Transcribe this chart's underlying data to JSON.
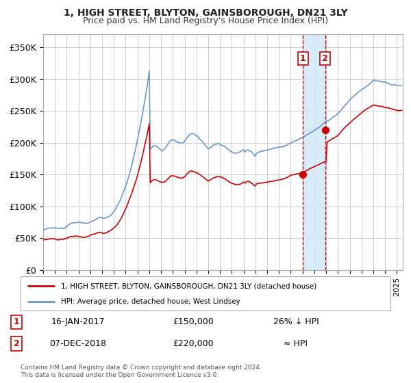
{
  "title": "1, HIGH STREET, BLYTON, GAINSBOROUGH, DN21 3LY",
  "subtitle": "Price paid vs. HM Land Registry's House Price Index (HPI)",
  "ylim": [
    0,
    370000
  ],
  "yticks": [
    0,
    50000,
    100000,
    150000,
    200000,
    250000,
    300000,
    350000
  ],
  "ytick_labels": [
    "£0",
    "£50K",
    "£100K",
    "£150K",
    "£200K",
    "£250K",
    "£300K",
    "£350K"
  ],
  "xlim_start": 1995.0,
  "xlim_end": 2025.5,
  "background_color": "#ffffff",
  "grid_color": "#cccccc",
  "hpi_color": "#6699cc",
  "price_color": "#cc0000",
  "sale1_date": 2017.04,
  "sale1_price": 150000,
  "sale2_date": 2018.92,
  "sale2_price": 220000,
  "shade_start": 2017.04,
  "shade_end": 2018.92,
  "footnote": "Contains HM Land Registry data © Crown copyright and database right 2024.\nThis data is licensed under the Open Government Licence v3.0.",
  "legend1_label": "1, HIGH STREET, BLYTON, GAINSBOROUGH, DN21 3LY (detached house)",
  "legend2_label": "HPI: Average price, detached house, West Lindsey",
  "table_row1": [
    "1",
    "16-JAN-2017",
    "£150,000",
    "26% ↓ HPI"
  ],
  "table_row2": [
    "2",
    "07-DEC-2018",
    "£220,000",
    "≈ HPI"
  ]
}
